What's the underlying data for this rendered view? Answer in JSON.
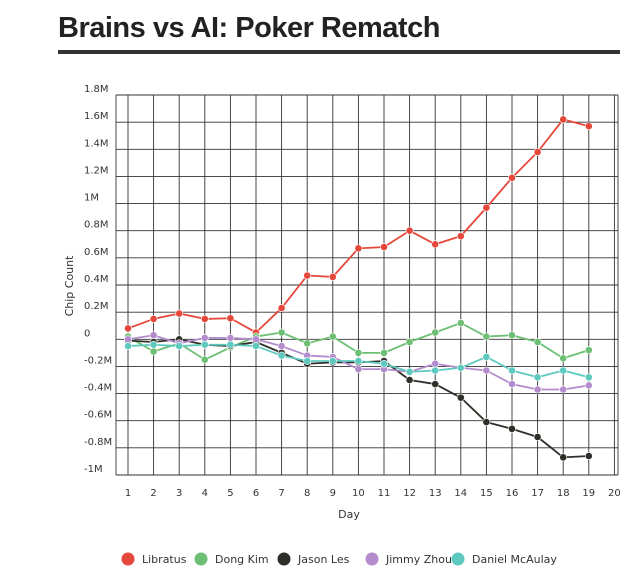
{
  "page": {
    "title": "Brains vs AI: Poker Rematch"
  },
  "chart_data": {
    "type": "line",
    "title": "Brains vs AI: Poker Rematch",
    "xlabel": "Day",
    "ylabel": "Chip Count",
    "x": [
      1,
      2,
      3,
      4,
      5,
      6,
      7,
      8,
      9,
      10,
      11,
      12,
      13,
      14,
      15,
      16,
      17,
      18,
      19
    ],
    "xlim": [
      1,
      20
    ],
    "ylim": [
      -1000000,
      1800000
    ],
    "x_ticks": [
      1,
      2,
      3,
      4,
      5,
      6,
      7,
      8,
      9,
      10,
      11,
      12,
      13,
      14,
      15,
      16,
      17,
      18,
      19,
      20
    ],
    "x_tick_labels": [
      "1",
      "2",
      "3",
      "4",
      "5",
      "6",
      "7",
      "8",
      "9",
      "10",
      "11",
      "12",
      "13",
      "14",
      "15",
      "16",
      "17",
      "18",
      "19",
      "20"
    ],
    "y_ticks": [
      1800000,
      1600000,
      1400000,
      1200000,
      1000000,
      800000,
      600000,
      400000,
      200000,
      0,
      -200000,
      -400000,
      -600000,
      -800000,
      -1000000
    ],
    "y_tick_labels": [
      "1.8M",
      "1.6M",
      "1.4M",
      "1.2M",
      "1M",
      "0.8M",
      "0.6M",
      "0.4M",
      "0.2M",
      "0",
      "-0.2M",
      "-0.4M",
      "-0.6M",
      "-0.8M",
      "-1M"
    ],
    "grid": true,
    "legend_position": "bottom",
    "series": [
      {
        "name": "Libratus",
        "color": "#e5483a",
        "values": [
          80000,
          150000,
          190000,
          150000,
          155000,
          50000,
          230000,
          470000,
          460000,
          670000,
          680000,
          800000,
          700000,
          760000,
          970000,
          1190000,
          1380000,
          1620000,
          1570000
        ]
      },
      {
        "name": "Dong Kim",
        "color": "#6cbf73",
        "values": [
          20000,
          -90000,
          -30000,
          -150000,
          -60000,
          20000,
          50000,
          -30000,
          20000,
          -100000,
          -100000,
          -20000,
          50000,
          120000,
          20000,
          30000,
          -20000,
          -140000,
          -80000
        ]
      },
      {
        "name": "Jason Les",
        "color": "#2f2f2a",
        "values": [
          -10000,
          -20000,
          0,
          -40000,
          -50000,
          -20000,
          -100000,
          -180000,
          -170000,
          -170000,
          -160000,
          -300000,
          -330000,
          -430000,
          -610000,
          -660000,
          -720000,
          -870000,
          -860000
        ]
      },
      {
        "name": "Jimmy Zhou",
        "color": "#b48ccd",
        "values": [
          0,
          30000,
          -30000,
          10000,
          10000,
          0,
          -50000,
          -120000,
          -130000,
          -220000,
          -220000,
          -240000,
          -180000,
          -210000,
          -230000,
          -330000,
          -370000,
          -370000,
          -340000
        ]
      },
      {
        "name": "Daniel McAulay",
        "color": "#5ec9bf",
        "values": [
          -50000,
          -40000,
          -50000,
          -40000,
          -40000,
          -50000,
          -120000,
          -160000,
          -160000,
          -160000,
          -180000,
          -240000,
          -230000,
          -210000,
          -130000,
          -230000,
          -280000,
          -230000,
          -280000
        ]
      }
    ]
  }
}
